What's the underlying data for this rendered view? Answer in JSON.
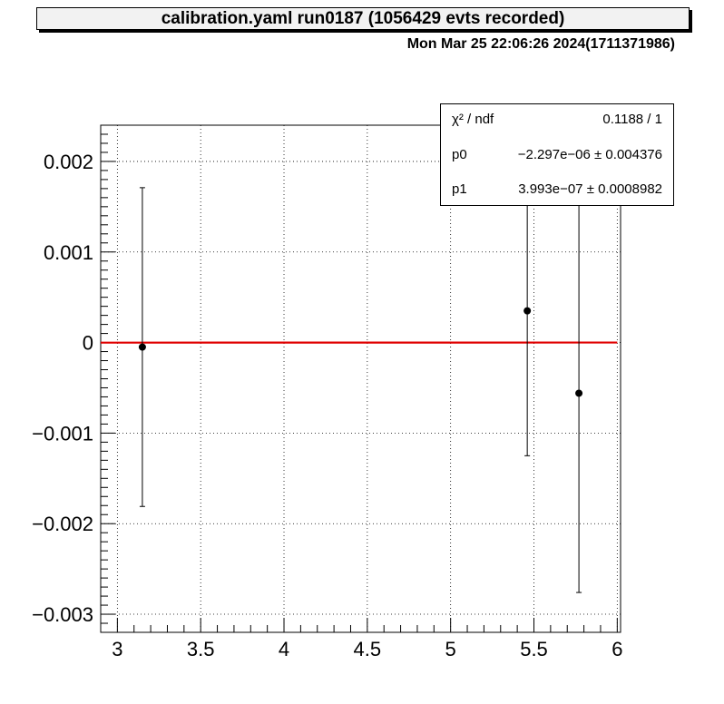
{
  "header": {
    "title": "calibration.yaml  run0187 (1056429 evts recorded)",
    "timestamp": "Mon Mar 25 22:06:26 2024(1711371986)"
  },
  "stats": {
    "rows": [
      {
        "key": "χ² / ndf",
        "value": "0.1188 / 1"
      },
      {
        "key": "p0",
        "value": "−2.297e−06 ± 0.004376"
      },
      {
        "key": "p1",
        "value": "3.993e−07 ± 0.0008982"
      }
    ]
  },
  "chart_data": {
    "type": "scatter",
    "title": "",
    "xlabel": "",
    "ylabel": "",
    "xlim": [
      2.9,
      6.02
    ],
    "ylim": [
      -0.0032,
      0.0024
    ],
    "x_ticks": [
      {
        "v": 3,
        "label": "3"
      },
      {
        "v": 3.5,
        "label": "3.5"
      },
      {
        "v": 4,
        "label": "4"
      },
      {
        "v": 4.5,
        "label": "4.5"
      },
      {
        "v": 5,
        "label": "5"
      },
      {
        "v": 5.5,
        "label": "5.5"
      },
      {
        "v": 6,
        "label": "6"
      }
    ],
    "y_ticks": [
      {
        "v": 0.002,
        "label": "0.002"
      },
      {
        "v": 0.001,
        "label": "0.001"
      },
      {
        "v": 0,
        "label": "0"
      },
      {
        "v": -0.001,
        "label": "−0.001"
      },
      {
        "v": -0.002,
        "label": "−0.002"
      },
      {
        "v": -0.003,
        "label": "−0.003"
      }
    ],
    "grid": true,
    "series": [
      {
        "points": [
          {
            "x": 3.15,
            "y": -5e-05,
            "err": 0.00176
          },
          {
            "x": 5.46,
            "y": 0.00035,
            "err": 0.0016
          },
          {
            "x": 5.77,
            "y": -0.00056,
            "err": 0.0022
          }
        ],
        "color": "#000000"
      }
    ],
    "fit": {
      "p0": -2.297e-06,
      "p1": 3.993e-07,
      "color": "#e00000"
    }
  }
}
